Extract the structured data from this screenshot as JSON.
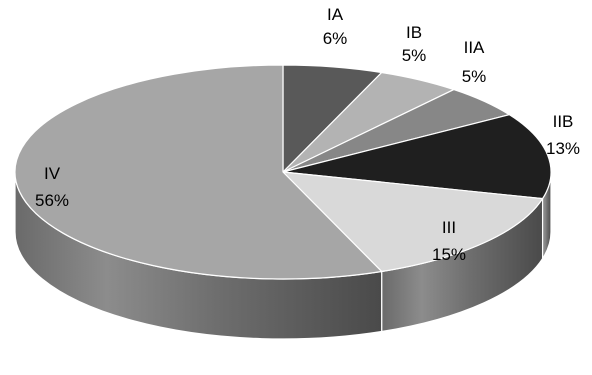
{
  "chart_data": {
    "type": "pie",
    "style": "3d",
    "categories": [
      "IA",
      "IB",
      "IIA",
      "IIB",
      "III",
      "IV"
    ],
    "values": [
      6,
      5,
      5,
      13,
      15,
      56
    ],
    "value_labels": [
      "6%",
      "5%",
      "5%",
      "13%",
      "15%",
      "56%"
    ],
    "unit": "%",
    "start_angle_deg": 90,
    "direction": "clockwise",
    "colors": [
      "#595959",
      "#b3b3b3",
      "#878787",
      "#1f1f1f",
      "#d9d9d9",
      "#a6a6a6"
    ],
    "legend": "none",
    "title": ""
  }
}
